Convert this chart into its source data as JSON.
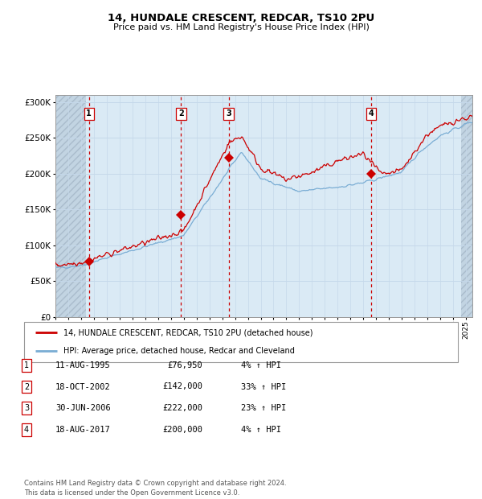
{
  "title": "14, HUNDALE CRESCENT, REDCAR, TS10 2PU",
  "subtitle": "Price paid vs. HM Land Registry's House Price Index (HPI)",
  "ylim": [
    0,
    310000
  ],
  "yticks": [
    0,
    50000,
    100000,
    150000,
    200000,
    250000,
    300000
  ],
  "ytick_labels": [
    "£0",
    "£50K",
    "£100K",
    "£150K",
    "£200K",
    "£250K",
    "£300K"
  ],
  "sale_dates_num": [
    1995.61,
    2002.8,
    2006.5,
    2017.63
  ],
  "sale_prices": [
    76950,
    142000,
    222000,
    200000
  ],
  "sale_labels": [
    "1",
    "2",
    "3",
    "4"
  ],
  "hpi_line_color": "#7aadd4",
  "price_line_color": "#cc0000",
  "sale_marker_color": "#cc0000",
  "vline_color": "#cc0000",
  "grid_color": "#c5d8ea",
  "bg_color_main": "#daeaf5",
  "bg_color_hatch": "#c2d4e2",
  "legend_line1": "14, HUNDALE CRESCENT, REDCAR, TS10 2PU (detached house)",
  "legend_line2": "HPI: Average price, detached house, Redcar and Cleveland",
  "table_entries": [
    [
      "1",
      "11-AUG-1995",
      "£76,950",
      "4% ↑ HPI"
    ],
    [
      "2",
      "18-OCT-2002",
      "£142,000",
      "33% ↑ HPI"
    ],
    [
      "3",
      "30-JUN-2006",
      "£222,000",
      "23% ↑ HPI"
    ],
    [
      "4",
      "18-AUG-2017",
      "£200,000",
      "4% ↑ HPI"
    ]
  ],
  "footnote": "Contains HM Land Registry data © Crown copyright and database right 2024.\nThis data is licensed under the Open Government Licence v3.0.",
  "xmin": 1993.0,
  "xmax": 2025.5,
  "hatch_left_end": 1995.4,
  "hatch_right_start": 2024.6
}
